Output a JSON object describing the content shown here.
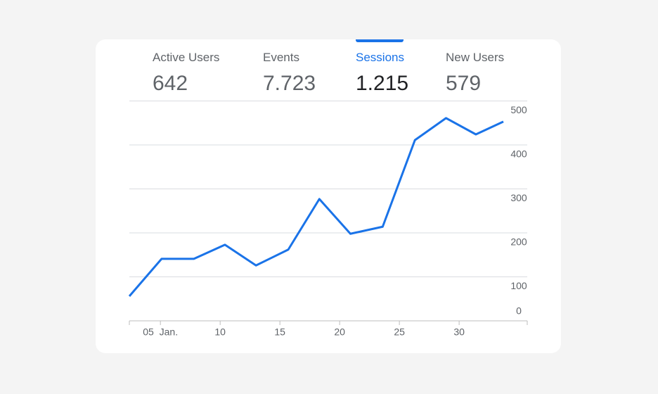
{
  "tabs": [
    {
      "label": "Active Users",
      "value": "642"
    },
    {
      "label": "Events",
      "value": "7.723"
    },
    {
      "label": "Sessions",
      "value": "1.215"
    },
    {
      "label": "New Users",
      "value": "579"
    }
  ],
  "active_tab": 2,
  "chart_data": {
    "type": "line",
    "x": [
      2.4,
      5.1,
      7.8,
      10.4,
      13,
      15.7,
      18.3,
      20.9,
      23.6,
      26.3,
      28.9,
      31.4,
      33.7
    ],
    "series": [
      {
        "name": "Sessions",
        "color": "#1a73e8",
        "values": [
          56,
          141,
          141,
          173,
          126,
          162,
          277,
          198,
          214,
          411,
          461,
          424,
          453
        ]
      }
    ],
    "xlim": [
      2.4,
      35.7
    ],
    "xticks": [
      {
        "value": 5,
        "label": "05  Jan."
      },
      10,
      15,
      20,
      25,
      30
    ],
    "ylim": [
      0,
      500
    ],
    "yticks": [
      0,
      100,
      200,
      300,
      400,
      500
    ],
    "grid": true
  }
}
